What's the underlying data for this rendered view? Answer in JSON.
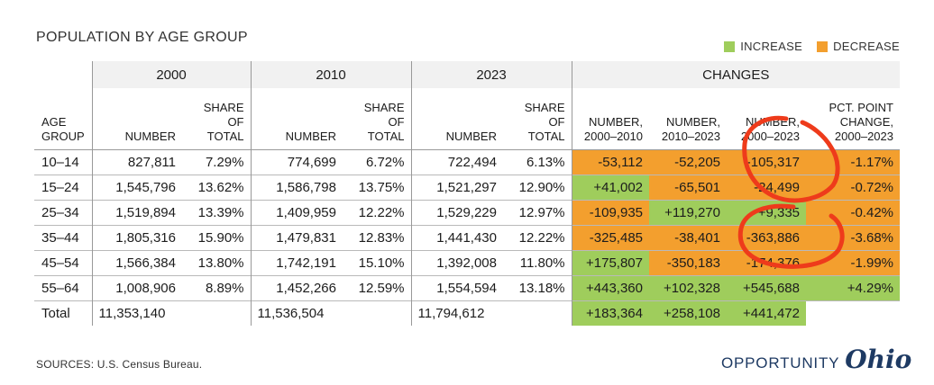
{
  "title": "POPULATION BY AGE GROUP",
  "legend": {
    "increase": "INCREASE",
    "decrease": "DECREASE",
    "increase_color": "#9fcd5c",
    "decrease_color": "#f39f2e"
  },
  "groups": {
    "y2000": "2000",
    "y2010": "2010",
    "y2023": "2023",
    "changes": "CHANGES"
  },
  "columns": {
    "age": [
      "AGE",
      "GROUP"
    ],
    "number": "NUMBER",
    "share": [
      "SHARE OF",
      "TOTAL"
    ],
    "c1": [
      "NUMBER,",
      "2000–2010"
    ],
    "c2": [
      "NUMBER,",
      "2010–2023"
    ],
    "c3": [
      "NUMBER,",
      "2000–2023"
    ],
    "c4": [
      "PCT. POINT",
      "CHANGE,",
      "2000–2023"
    ]
  },
  "rows": [
    {
      "age": "10–14",
      "n2000": "827,811",
      "s2000": "7.29%",
      "n2010": "774,699",
      "s2010": "6.72%",
      "n2023": "722,494",
      "s2023": "6.13%",
      "c1": "-53,112",
      "c2": "-52,205",
      "c3": "-105,317",
      "c4": "-1.17%"
    },
    {
      "age": "15–24",
      "n2000": "1,545,796",
      "s2000": "13.62%",
      "n2010": "1,586,798",
      "s2010": "13.75%",
      "n2023": "1,521,297",
      "s2023": "12.90%",
      "c1": "+41,002",
      "c2": "-65,501",
      "c3": "-24,499",
      "c4": "-0.72%"
    },
    {
      "age": "25–34",
      "n2000": "1,519,894",
      "s2000": "13.39%",
      "n2010": "1,409,959",
      "s2010": "12.22%",
      "n2023": "1,529,229",
      "s2023": "12.97%",
      "c1": "-109,935",
      "c2": "+119,270",
      "c3": "+9,335",
      "c4": "-0.42%"
    },
    {
      "age": "35–44",
      "n2000": "1,805,316",
      "s2000": "15.90%",
      "n2010": "1,479,831",
      "s2010": "12.83%",
      "n2023": "1,441,430",
      "s2023": "12.22%",
      "c1": "-325,485",
      "c2": "-38,401",
      "c3": "-363,886",
      "c4": "-3.68%"
    },
    {
      "age": "45–54",
      "n2000": "1,566,384",
      "s2000": "13.80%",
      "n2010": "1,742,191",
      "s2010": "15.10%",
      "n2023": "1,392,008",
      "s2023": "11.80%",
      "c1": "+175,807",
      "c2": "-350,183",
      "c3": "-174,376",
      "c4": "-1.99%"
    },
    {
      "age": "55–64",
      "n2000": "1,008,906",
      "s2000": "8.89%",
      "n2010": "1,452,266",
      "s2010": "12.59%",
      "n2023": "1,554,594",
      "s2023": "13.18%",
      "c1": "+443,360",
      "c2": "+102,328",
      "c3": "+545,688",
      "c4": "+4.29%"
    }
  ],
  "total": {
    "age": "Total",
    "n2000": "11,353,140",
    "n2010": "11,536,504",
    "n2023": "11,794,612",
    "c1": "+183,364",
    "c2": "+258,108",
    "c3": "+441,472"
  },
  "source": "SOURCES: U.S. Census Bureau.",
  "logo": {
    "word": "OPPORTUNITY",
    "script": "Ohio",
    "color": "#1e3a63"
  },
  "annotation_color": "#ee3b1b"
}
